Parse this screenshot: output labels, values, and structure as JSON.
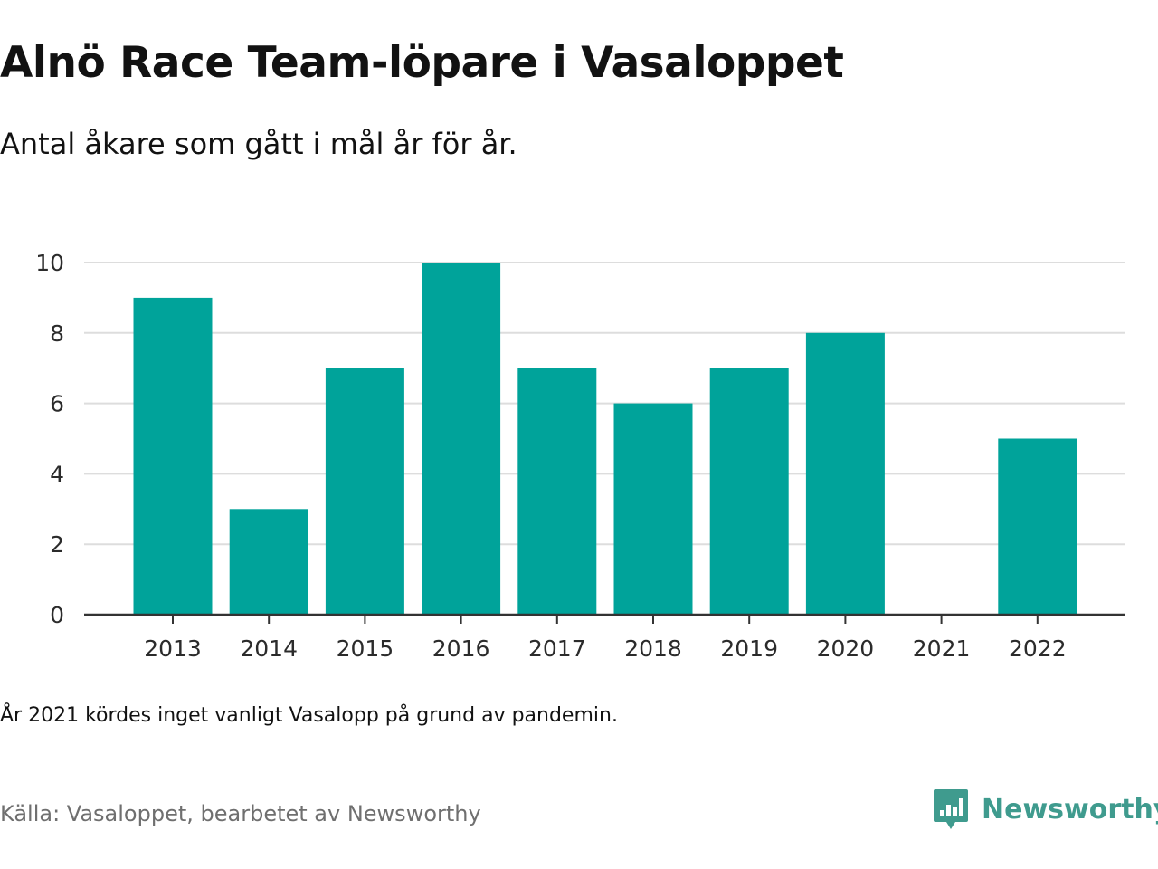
{
  "header": {
    "title": "Alnö Race Team-löpare i Vasaloppet",
    "subtitle": "Antal åkare som gått i mål år för år."
  },
  "footer": {
    "note": "År 2021 kördes inget vanligt Vasalopp på grund av pandemin.",
    "source": "Källa: Vasaloppet, bearbetet av Newsworthy",
    "brand": "Newsworthy"
  },
  "icons": {
    "brand_logo": "newsworthy-logo-icon"
  },
  "colors": {
    "bar": "#00a39a",
    "grid": "#dddddd",
    "baseline": "#333333",
    "brand": "#3f9b8e"
  },
  "chart_data": {
    "type": "bar",
    "categories": [
      "2013",
      "2014",
      "2015",
      "2016",
      "2017",
      "2018",
      "2019",
      "2020",
      "2021",
      "2022"
    ],
    "values": [
      9,
      3,
      7,
      10,
      7,
      6,
      7,
      8,
      0,
      5
    ],
    "yticks": [
      0,
      2,
      4,
      6,
      8,
      10
    ],
    "ylim": [
      0,
      10
    ],
    "xlabel": "",
    "ylabel": "",
    "grid": true,
    "legend": "none"
  }
}
